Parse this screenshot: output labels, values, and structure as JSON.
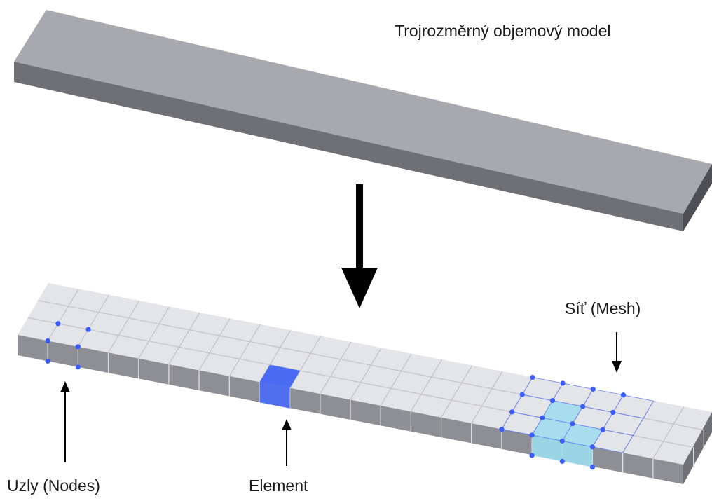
{
  "labels": {
    "solid_model": "Trojrozměrný objemový model",
    "mesh": "Síť (Mesh)",
    "nodes": "Uzly (Nodes)",
    "element": "Element"
  },
  "colors": {
    "top_face": "#a8a9ae",
    "front_face": "#6f7076",
    "end_face": "#4e4f55",
    "mesh_top": "#e4e5e9",
    "mesh_front": "#8e8f94",
    "mesh_end": "#707177",
    "grid_line": "#c4c5ca",
    "node": "#3b5cff",
    "element_highlight": "#4a6cf5",
    "mesh_highlight": "#9cdcec",
    "arrow": "#000000"
  },
  "mesh": {
    "length_divisions": 22,
    "width_divisions": 3,
    "height_divisions": 1
  }
}
